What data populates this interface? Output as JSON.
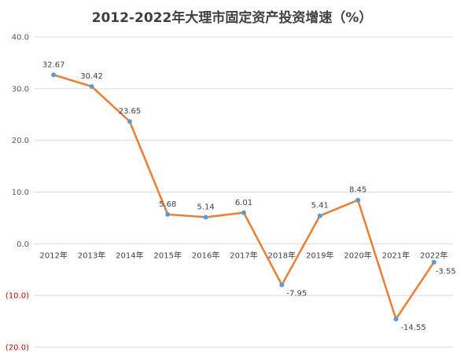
{
  "chart_data": {
    "type": "line",
    "title": "2012-2022年大理市固定资产投资增速（%）",
    "xlabel": "",
    "ylabel": "",
    "categories": [
      "2012年",
      "2013年",
      "2014年",
      "2015年",
      "2016年",
      "2017年",
      "2018年",
      "2019年",
      "2020年",
      "2021年",
      "2022年"
    ],
    "series": [
      {
        "values": [
          32.67,
          30.42,
          23.65,
          5.68,
          5.14,
          6.01,
          -7.95,
          5.41,
          8.45,
          -14.55,
          -3.55
        ],
        "labels": [
          "32.67",
          "30.42",
          "23.65",
          "5.68",
          "5.14",
          "6.01",
          "-7.95",
          "5.41",
          "8.45",
          "-14.55",
          "-3.55"
        ],
        "line_color": "#ED7D31",
        "marker_color": "#5B9BD5"
      }
    ],
    "ylim": [
      -20,
      40
    ],
    "yticks": [
      {
        "value": 40,
        "label": "40.0"
      },
      {
        "value": 30,
        "label": "30.0"
      },
      {
        "value": 20,
        "label": "20.0"
      },
      {
        "value": 10,
        "label": "10.0"
      },
      {
        "value": 0,
        "label": "0.0"
      },
      {
        "value": -10,
        "label": "(10.0)"
      },
      {
        "value": -20,
        "label": "(20.0)"
      }
    ],
    "negative_tick_color": "#C00000",
    "tick_color": "#595959",
    "grid": true,
    "legend": "none"
  }
}
